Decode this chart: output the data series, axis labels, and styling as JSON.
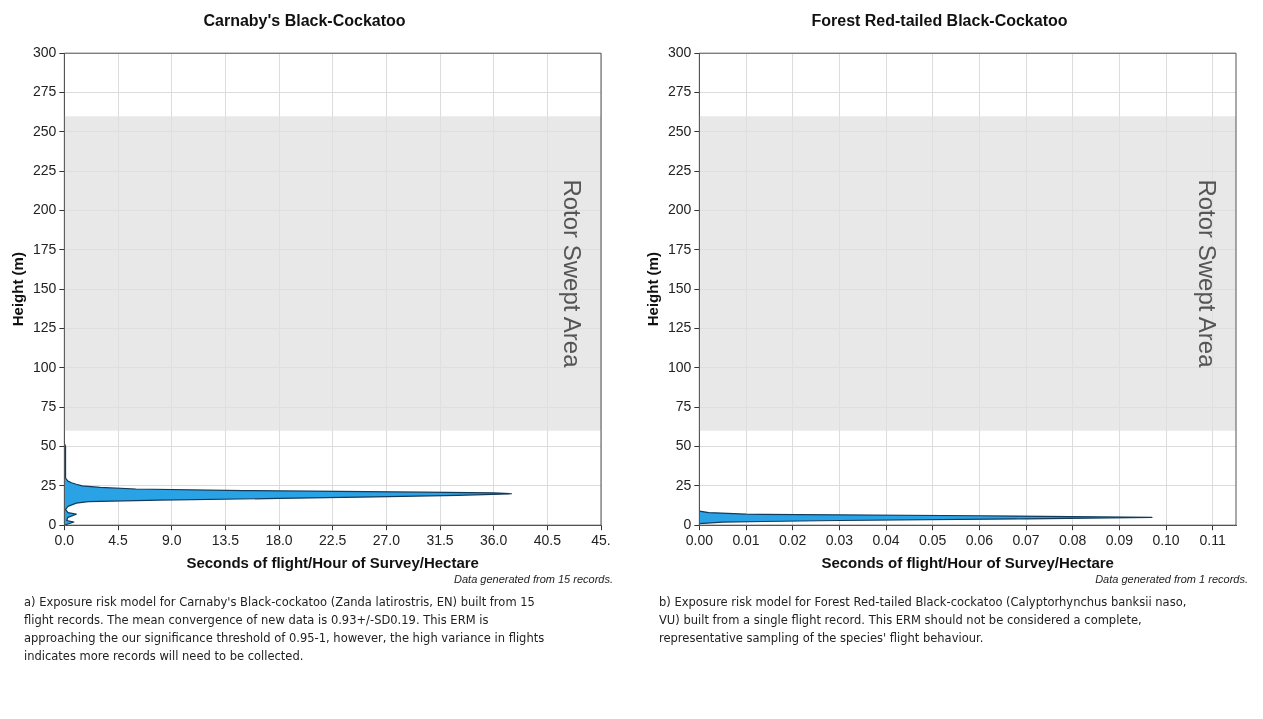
{
  "chart_data": [
    {
      "type": "area",
      "orientation": "horizontal",
      "title": "Carnaby's Black-Cockatoo",
      "xlabel": "Seconds of flight/Hour of Survey/Hectare",
      "ylabel": "Height (m)",
      "series": [
        {
          "color": "#29a3e6",
          "x": [
            0,
            2,
            3,
            5,
            7,
            8,
            10,
            12,
            14,
            15,
            16,
            17,
            18,
            19,
            20,
            20.5,
            21,
            22,
            23,
            24,
            25,
            26,
            27,
            28,
            30,
            35,
            45,
            50,
            52
          ],
          "values": [
            0,
            0.8,
            0.2,
            0.3,
            1.0,
            0.3,
            0.1,
            0.3,
            1.0,
            2,
            8,
            18,
            26,
            33,
            37.5,
            36,
            30,
            15,
            6,
            3,
            1.5,
            1,
            0.6,
            0.3,
            0.1,
            0.1,
            0.1,
            0.1,
            0
          ]
        }
      ],
      "xlim": [
        0,
        45
      ],
      "xticks": [
        {
          "value": 0,
          "label": "0.0"
        },
        4.5,
        {
          "value": 9,
          "label": "9.0"
        },
        13.5,
        {
          "value": 18,
          "label": "18.0"
        },
        22.5,
        {
          "value": 27,
          "label": "27.0"
        },
        31.5,
        {
          "value": 36,
          "label": "36.0"
        },
        40.5,
        {
          "value": 45,
          "label": "45."
        }
      ],
      "ylim": [
        0,
        300
      ],
      "yticks": [
        0,
        25,
        50,
        75,
        100,
        125,
        150,
        175,
        200,
        225,
        250,
        275,
        300
      ],
      "grid": true,
      "bands": [
        {
          "axis": "y",
          "from": 60,
          "to": 260,
          "label": "Rotor Swept Area",
          "color": "#e0e0e0"
        }
      ],
      "annotations": [
        "Data generated from 15 records.",
        "a) Exposure risk model for Carnaby's Black-cockatoo (Zanda latirostris, EN) built from 15 flight records. The mean convergence of new data is 0.93+/-SD0.19. This ERM is approaching the our significance threshold of 0.95-1, however, the high variance in flights indicates more records will need to be collected."
      ]
    },
    {
      "type": "area",
      "orientation": "horizontal",
      "title": "Forest Red-tailed Black-Cockatoo",
      "xlabel": "Seconds of flight/Hour of Survey/Hectare",
      "ylabel": "Height (m)",
      "series": [
        {
          "color": "#29a3e6",
          "x": [
            1,
            2,
            3,
            4,
            5,
            6,
            7,
            8,
            9
          ],
          "values": [
            0,
            0.005,
            0.03,
            0.07,
            0.097,
            0.06,
            0.01,
            0.002,
            0
          ]
        }
      ],
      "xlim": [
        0,
        0.115
      ],
      "xticks": [
        {
          "value": 0,
          "label": "0.00"
        },
        0.01,
        0.02,
        0.03,
        0.04,
        0.05,
        0.06,
        0.07,
        0.08,
        0.09,
        {
          "value": 0.1,
          "label": "0.10"
        },
        0.11
      ],
      "ylim": [
        0,
        300
      ],
      "yticks": [
        0,
        25,
        50,
        75,
        100,
        125,
        150,
        175,
        200,
        225,
        250,
        275,
        300
      ],
      "grid": true,
      "bands": [
        {
          "axis": "y",
          "from": 60,
          "to": 260,
          "label": "Rotor Swept Area",
          "color": "#e0e0e0"
        }
      ],
      "annotations": [
        "Data generated from 1 records.",
        "b) Exposure risk model for Forest Red-tailed Black-cockatoo (Calyptorhynchus banksii naso, VU) built from a single flight record. This ERM should not be considered a complete, representative sampling of the species' flight behaviour."
      ]
    }
  ]
}
